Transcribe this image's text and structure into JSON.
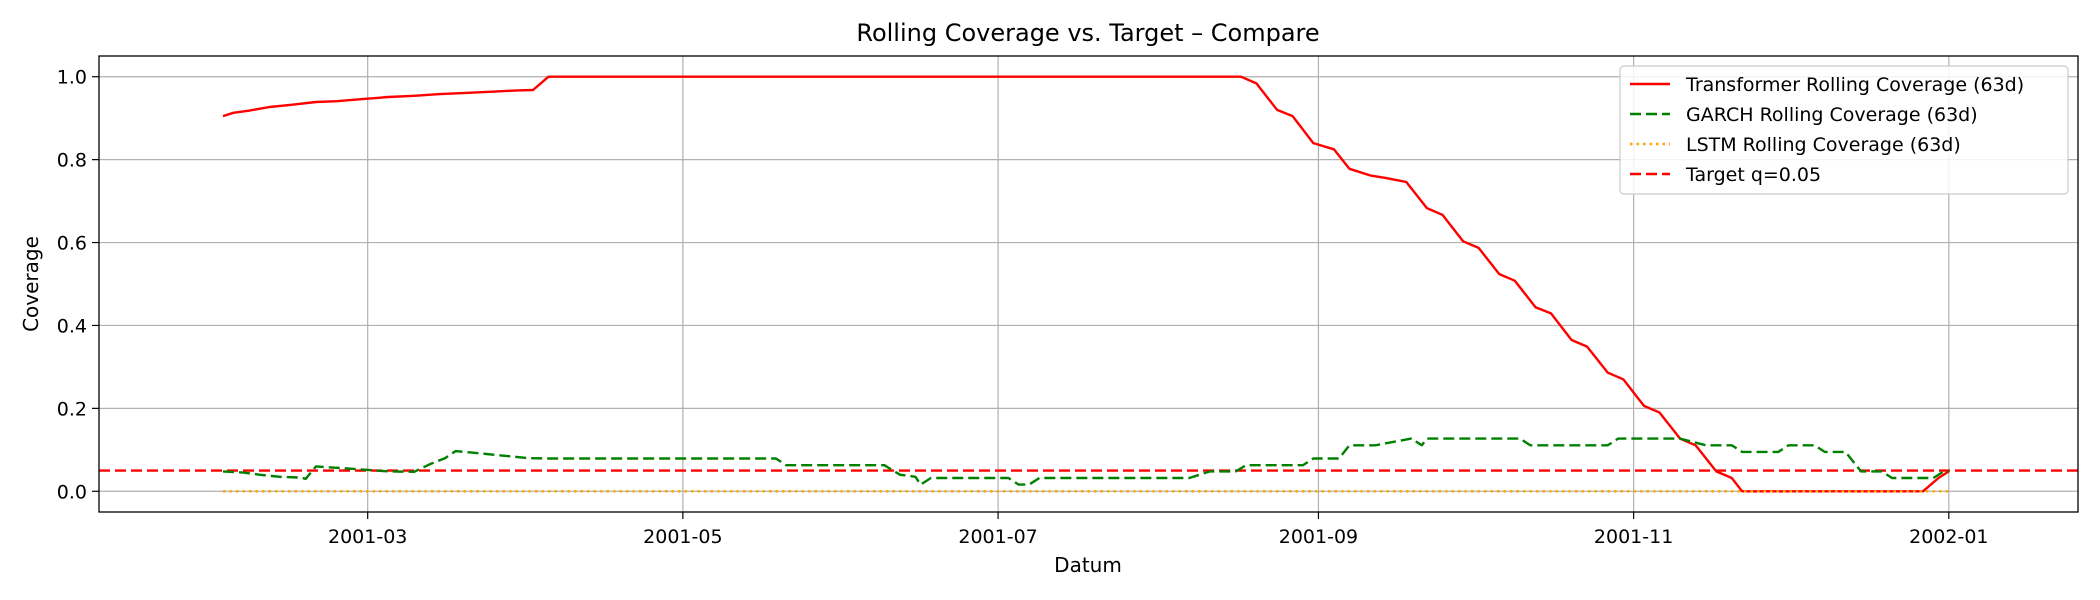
{
  "chart_data": {
    "type": "line",
    "title": "Rolling Coverage vs. Target – Compare",
    "xlabel": "Datum",
    "ylabel": "Coverage",
    "xlim": [
      "2001-01-08",
      "2002-01-26"
    ],
    "ylim": [
      -0.05,
      1.05
    ],
    "x_ticks": [
      "2001-03",
      "2001-05",
      "2001-07",
      "2001-09",
      "2001-11",
      "2002-01"
    ],
    "x_tick_dates": [
      "2001-03-01",
      "2001-05-01",
      "2001-07-01",
      "2001-09-01",
      "2001-11-01",
      "2002-01-01"
    ],
    "y_ticks": [
      0.0,
      0.2,
      0.4,
      0.6,
      0.8,
      1.0
    ],
    "y_tick_labels": [
      "0.0",
      "0.2",
      "0.4",
      "0.6",
      "0.8",
      "1.0"
    ],
    "grid": true,
    "legend_position": "top-right",
    "series": [
      {
        "name": "Transformer Rolling Coverage (63d)",
        "color": "#ff0000",
        "style": "solid",
        "points": [
          [
            "2001-02-01",
            0.905
          ],
          [
            "2001-02-03",
            0.913
          ],
          [
            "2001-02-06",
            0.918
          ],
          [
            "2001-02-10",
            0.927
          ],
          [
            "2001-02-14",
            0.932
          ],
          [
            "2001-02-19",
            0.939
          ],
          [
            "2001-02-23",
            0.941
          ],
          [
            "2001-02-28",
            0.946
          ],
          [
            "2001-03-05",
            0.951
          ],
          [
            "2001-03-10",
            0.954
          ],
          [
            "2001-03-15",
            0.958
          ],
          [
            "2001-03-20",
            0.961
          ],
          [
            "2001-03-25",
            0.964
          ],
          [
            "2001-03-30",
            0.967
          ],
          [
            "2001-04-02",
            0.968
          ],
          [
            "2001-04-05",
            1.0
          ],
          [
            "2001-05-01",
            1.0
          ],
          [
            "2001-06-01",
            1.0
          ],
          [
            "2001-07-01",
            1.0
          ],
          [
            "2001-08-01",
            1.0
          ],
          [
            "2001-08-17",
            1.0
          ],
          [
            "2001-08-20",
            0.984
          ],
          [
            "2001-08-24",
            0.92
          ],
          [
            "2001-08-27",
            0.905
          ],
          [
            "2001-08-31",
            0.84
          ],
          [
            "2001-09-04",
            0.825
          ],
          [
            "2001-09-07",
            0.778
          ],
          [
            "2001-09-11",
            0.762
          ],
          [
            "2001-09-14",
            0.756
          ],
          [
            "2001-09-18",
            0.746
          ],
          [
            "2001-09-22",
            0.683
          ],
          [
            "2001-09-25",
            0.667
          ],
          [
            "2001-09-29",
            0.603
          ],
          [
            "2001-10-02",
            0.587
          ],
          [
            "2001-10-06",
            0.524
          ],
          [
            "2001-10-09",
            0.508
          ],
          [
            "2001-10-13",
            0.444
          ],
          [
            "2001-10-16",
            0.429
          ],
          [
            "2001-10-20",
            0.365
          ],
          [
            "2001-10-23",
            0.349
          ],
          [
            "2001-10-27",
            0.286
          ],
          [
            "2001-10-30",
            0.27
          ],
          [
            "2001-11-03",
            0.206
          ],
          [
            "2001-11-06",
            0.19
          ],
          [
            "2001-11-10",
            0.127
          ],
          [
            "2001-11-13",
            0.111
          ],
          [
            "2001-11-17",
            0.048
          ],
          [
            "2001-11-20",
            0.032
          ],
          [
            "2001-11-22",
            0.0
          ],
          [
            "2001-12-01",
            0.0
          ],
          [
            "2001-12-15",
            0.0
          ],
          [
            "2001-12-27",
            0.0
          ],
          [
            "2001-12-30",
            0.032
          ],
          [
            "2002-01-01",
            0.048
          ]
        ]
      },
      {
        "name": "GARCH Rolling Coverage (63d)",
        "color": "#008000",
        "style": "dashed",
        "points": [
          [
            "2001-02-01",
            0.048
          ],
          [
            "2001-02-05",
            0.045
          ],
          [
            "2001-02-08",
            0.04
          ],
          [
            "2001-02-12",
            0.035
          ],
          [
            "2001-02-16",
            0.033
          ],
          [
            "2001-02-17",
            0.03
          ],
          [
            "2001-02-19",
            0.06
          ],
          [
            "2001-02-25",
            0.055
          ],
          [
            "2001-03-05",
            0.048
          ],
          [
            "2001-03-10",
            0.047
          ],
          [
            "2001-03-13",
            0.065
          ],
          [
            "2001-03-16",
            0.08
          ],
          [
            "2001-03-18",
            0.097
          ],
          [
            "2001-03-24",
            0.09
          ],
          [
            "2001-04-01",
            0.08
          ],
          [
            "2001-04-05",
            0.079
          ],
          [
            "2001-05-01",
            0.079
          ],
          [
            "2001-05-19",
            0.079
          ],
          [
            "2001-05-21",
            0.063
          ],
          [
            "2001-06-01",
            0.063
          ],
          [
            "2001-06-09",
            0.063
          ],
          [
            "2001-06-12",
            0.04
          ],
          [
            "2001-06-15",
            0.035
          ],
          [
            "2001-06-16",
            0.016
          ],
          [
            "2001-06-18",
            0.032
          ],
          [
            "2001-07-01",
            0.032
          ],
          [
            "2001-07-03",
            0.032
          ],
          [
            "2001-07-05",
            0.016
          ],
          [
            "2001-07-07",
            0.016
          ],
          [
            "2001-07-09",
            0.032
          ],
          [
            "2001-08-01",
            0.032
          ],
          [
            "2001-08-07",
            0.032
          ],
          [
            "2001-08-11",
            0.048
          ],
          [
            "2001-08-16",
            0.048
          ],
          [
            "2001-08-18",
            0.063
          ],
          [
            "2001-08-29",
            0.063
          ],
          [
            "2001-08-31",
            0.079
          ],
          [
            "2001-09-05",
            0.079
          ],
          [
            "2001-09-07",
            0.111
          ],
          [
            "2001-09-12",
            0.111
          ],
          [
            "2001-09-19",
            0.127
          ],
          [
            "2001-09-21",
            0.111
          ],
          [
            "2001-09-22",
            0.127
          ],
          [
            "2001-10-01",
            0.127
          ],
          [
            "2001-10-10",
            0.127
          ],
          [
            "2001-10-12",
            0.111
          ],
          [
            "2001-10-27",
            0.111
          ],
          [
            "2001-10-29",
            0.127
          ],
          [
            "2001-11-10",
            0.127
          ],
          [
            "2001-11-15",
            0.111
          ],
          [
            "2001-11-20",
            0.111
          ],
          [
            "2001-11-22",
            0.095
          ],
          [
            "2001-11-29",
            0.095
          ],
          [
            "2001-12-01",
            0.111
          ],
          [
            "2001-12-06",
            0.111
          ],
          [
            "2001-12-08",
            0.095
          ],
          [
            "2001-12-12",
            0.095
          ],
          [
            "2001-12-15",
            0.048
          ],
          [
            "2001-12-19",
            0.048
          ],
          [
            "2001-12-21",
            0.032
          ],
          [
            "2001-12-29",
            0.032
          ],
          [
            "2001-12-31",
            0.048
          ],
          [
            "2002-01-01",
            0.048
          ]
        ]
      },
      {
        "name": "LSTM Rolling Coverage (63d)",
        "color": "#ffa500",
        "style": "dotted",
        "points": [
          [
            "2001-02-01",
            0.0
          ],
          [
            "2002-01-01",
            0.0
          ]
        ]
      }
    ],
    "reference_lines": [
      {
        "name": "Target q=0.05",
        "y": 0.05,
        "color": "#ff0000",
        "style": "dashed"
      }
    ]
  }
}
